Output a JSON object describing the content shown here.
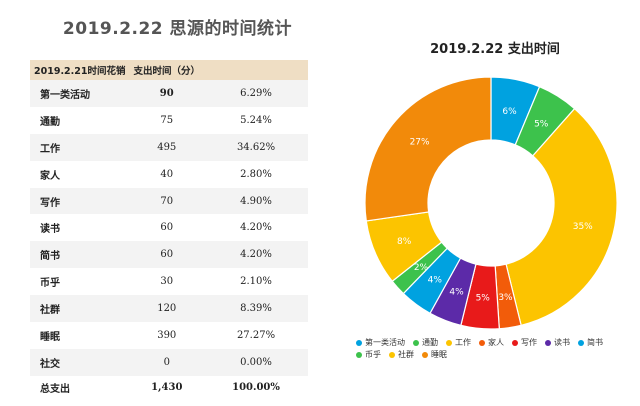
{
  "page": {
    "title": "2019.2.22 思源的时间统计"
  },
  "table": {
    "header": [
      "2019.2.21时间花销",
      "支出时间（分）",
      ""
    ],
    "rows": [
      {
        "category": "第一类活动",
        "minutes": "90",
        "percent": "6.29%"
      },
      {
        "category": "通勤",
        "minutes": "75",
        "percent": "5.24%"
      },
      {
        "category": "工作",
        "minutes": "495",
        "percent": "34.62%"
      },
      {
        "category": "家人",
        "minutes": "40",
        "percent": "2.80%"
      },
      {
        "category": "写作",
        "minutes": "70",
        "percent": "4.90%"
      },
      {
        "category": "读书",
        "minutes": "60",
        "percent": "4.20%"
      },
      {
        "category": "简书",
        "minutes": "60",
        "percent": "4.20%"
      },
      {
        "category": "币乎",
        "minutes": "30",
        "percent": "2.10%"
      },
      {
        "category": "社群",
        "minutes": "120",
        "percent": "8.39%"
      },
      {
        "category": "睡眠",
        "minutes": "390",
        "percent": "27.27%"
      },
      {
        "category": "社交",
        "minutes": "0",
        "percent": "0.00%"
      }
    ],
    "footer": {
      "label": "总支出",
      "minutes": "1,430",
      "percent": "100.00%"
    }
  },
  "chart_data": {
    "type": "pie",
    "title": "2019.2.22  支出时间",
    "legend_position": "bottom",
    "categories": [
      "第一类活动",
      "通勤",
      "工作",
      "家人",
      "写作",
      "读书",
      "简书",
      "币乎",
      "社群",
      "睡眠"
    ],
    "values": [
      90,
      75,
      495,
      40,
      70,
      60,
      60,
      30,
      120,
      390
    ],
    "labels": [
      "6%",
      "5%",
      "35%",
      "3%",
      "5%",
      "4%",
      "4%",
      "2%",
      "8%",
      "27%"
    ],
    "colors": [
      "#00a2e0",
      "#3dc24c",
      "#fcc400",
      "#f25c0a",
      "#e81a1a",
      "#5c2aa8",
      "#00a2e0",
      "#3dc24c",
      "#fcc400",
      "#f28a0a"
    ]
  }
}
